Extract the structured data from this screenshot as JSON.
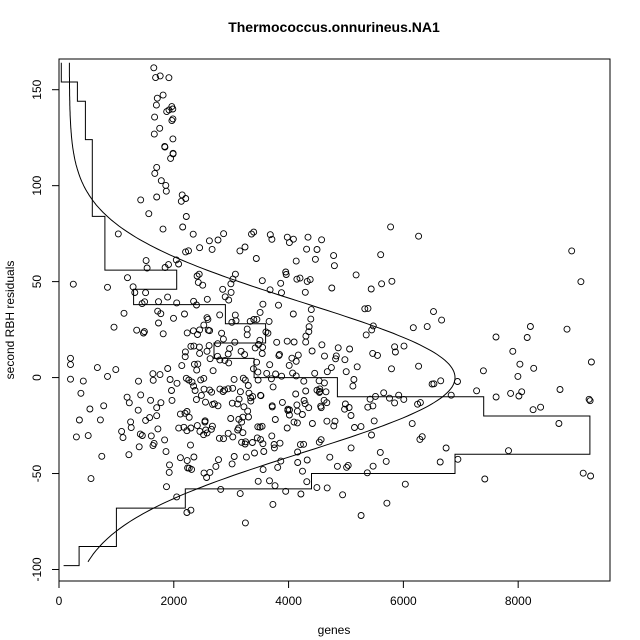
{
  "chart_data": {
    "type": "scatter",
    "title": "Thermococcus.onnurineus.NA1",
    "xlabel": "genes",
    "ylabel": "second RBH residuals",
    "xlim": [
      0,
      9600
    ],
    "ylim": [
      -106,
      166
    ],
    "x_ticks": [
      0,
      2000,
      4000,
      6000,
      8000
    ],
    "y_ticks": [
      -100,
      -50,
      0,
      50,
      100,
      150
    ],
    "grid": false,
    "legend": "none",
    "point_style": "open circle",
    "colors": {
      "ink": "#000000",
      "background": "#ffffff"
    },
    "histogram_overlay": {
      "description": "step outline of residual counts drawn horizontally from the y axis",
      "steps": [
        {
          "y0": 154,
          "y1": 164,
          "x": 40
        },
        {
          "y0": 144,
          "y1": 154,
          "x": 320
        },
        {
          "y0": 134,
          "y1": 144,
          "x": 460
        },
        {
          "y0": 124,
          "y1": 134,
          "x": 460
        },
        {
          "y0": 114,
          "y1": 124,
          "x": 580
        },
        {
          "y0": 104,
          "y1": 114,
          "x": 580
        },
        {
          "y0": 94,
          "y1": 104,
          "x": 580
        },
        {
          "y0": 84,
          "y1": 94,
          "x": 580
        },
        {
          "y0": 74,
          "y1": 84,
          "x": 800
        },
        {
          "y0": 64,
          "y1": 74,
          "x": 800
        },
        {
          "y0": 56,
          "y1": 64,
          "x": 800
        },
        {
          "y0": 46,
          "y1": 56,
          "x": 2050
        },
        {
          "y0": 38,
          "y1": 46,
          "x": 1300
        },
        {
          "y0": 28,
          "y1": 38,
          "x": 2900
        },
        {
          "y0": 18,
          "y1": 28,
          "x": 3600
        },
        {
          "y0": 10,
          "y1": 18,
          "x": 2700
        },
        {
          "y0": 0,
          "y1": 10,
          "x": 3400
        },
        {
          "y0": -10,
          "y1": 0,
          "x": 4850
        },
        {
          "y0": -20,
          "y1": -10,
          "x": 7400
        },
        {
          "y0": -30,
          "y1": -20,
          "x": 9250
        },
        {
          "y0": -40,
          "y1": -30,
          "x": 9250
        },
        {
          "y0": -50,
          "y1": -40,
          "x": 6900
        },
        {
          "y0": -58,
          "y1": -50,
          "x": 4400
        },
        {
          "y0": -68,
          "y1": -58,
          "x": 2200
        },
        {
          "y0": -78,
          "y1": -68,
          "x": 1000
        },
        {
          "y0": -88,
          "y1": -78,
          "x": 1000
        },
        {
          "y0": -98,
          "y1": -88,
          "x": 350
        }
      ]
    },
    "density_curve": {
      "description": "fitted normal density drawn horizontally",
      "center_y": 0,
      "peak_x": 6900,
      "sd": 39,
      "baseline_x": 180,
      "y_range": [
        -96,
        164
      ]
    },
    "points_seed": 7,
    "points": {
      "approximate_count": 480,
      "x_range": [
        200,
        9400
      ],
      "y_center": -10,
      "y_range": [
        -98,
        164
      ]
    }
  }
}
